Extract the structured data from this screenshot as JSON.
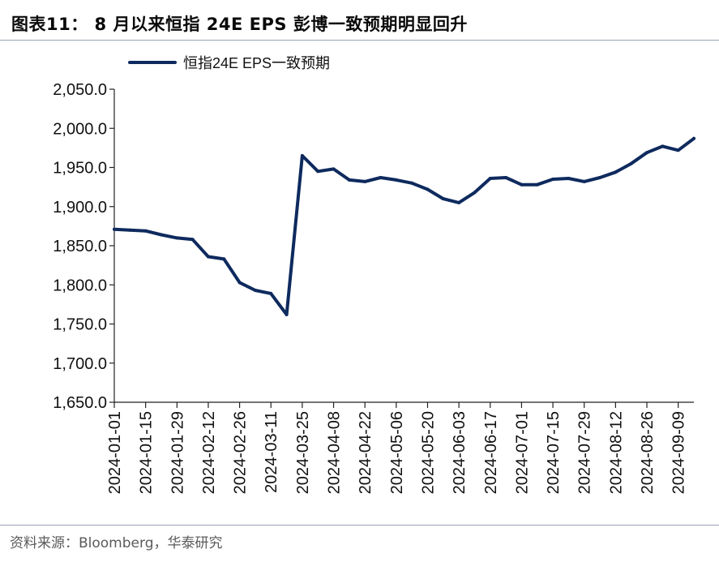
{
  "header": {
    "title": "图表11：  8 月以来恒指  24E EPS 彭博一致预期明显回升"
  },
  "footer": {
    "source": "资料来源：Bloomberg，华泰研究"
  },
  "colors": {
    "series": "#0e2a5e",
    "axis": "#222222",
    "rule": "#9aa3b5"
  },
  "chart_data": {
    "type": "line",
    "title": "",
    "xlabel": "",
    "ylabel": "",
    "legend_position": "top-left",
    "grid": false,
    "ylim": [
      1650,
      2050
    ],
    "y_ticks": [
      "1,650.0",
      "1,700.0",
      "1,750.0",
      "1,800.0",
      "1,850.0",
      "1,900.0",
      "1,950.0",
      "2,000.0",
      "2,050.0"
    ],
    "x_ticks": [
      "2024-01-01",
      "2024-01-15",
      "2024-01-29",
      "2024-02-12",
      "2024-02-26",
      "2024-03-11",
      "2024-03-25",
      "2024-04-08",
      "2024-04-22",
      "2024-05-06",
      "2024-05-20",
      "2024-06-03",
      "2024-06-17",
      "2024-07-01",
      "2024-07-15",
      "2024-07-29",
      "2024-08-12",
      "2024-08-26",
      "2024-09-09"
    ],
    "xlim": [
      "2024-01-01",
      "2024-09-16"
    ],
    "series": [
      {
        "name": "恒指24E EPS一致预期",
        "x": [
          "2024-01-01",
          "2024-01-08",
          "2024-01-15",
          "2024-01-22",
          "2024-01-29",
          "2024-02-05",
          "2024-02-12",
          "2024-02-19",
          "2024-02-26",
          "2024-03-04",
          "2024-03-11",
          "2024-03-18",
          "2024-03-25",
          "2024-04-01",
          "2024-04-08",
          "2024-04-15",
          "2024-04-22",
          "2024-04-29",
          "2024-05-06",
          "2024-05-13",
          "2024-05-20",
          "2024-05-27",
          "2024-06-03",
          "2024-06-10",
          "2024-06-17",
          "2024-06-24",
          "2024-07-01",
          "2024-07-08",
          "2024-07-15",
          "2024-07-22",
          "2024-07-29",
          "2024-08-05",
          "2024-08-12",
          "2024-08-19",
          "2024-08-26",
          "2024-09-02",
          "2024-09-09",
          "2024-09-16"
        ],
        "values": [
          1871,
          1870,
          1869,
          1864,
          1860,
          1858,
          1836,
          1833,
          1803,
          1793,
          1789,
          1762,
          1965,
          1945,
          1948,
          1934,
          1932,
          1937,
          1934,
          1930,
          1922,
          1910,
          1905,
          1918,
          1936,
          1937,
          1928,
          1928,
          1935,
          1936,
          1932,
          1937,
          1944,
          1955,
          1969,
          1977,
          1972,
          1987
        ]
      }
    ]
  }
}
